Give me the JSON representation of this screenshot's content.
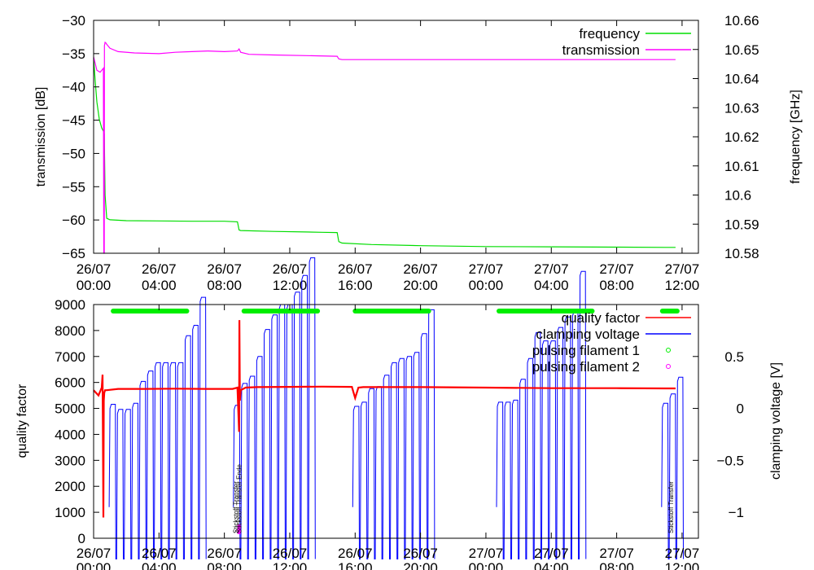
{
  "chart_data": [
    {
      "type": "line",
      "ylabel": "transmission [dB]",
      "y2label": "frequency [GHz]",
      "xlim": [
        0,
        37
      ],
      "ylim": [
        -65,
        -30
      ],
      "y2lim": [
        10.58,
        10.66
      ],
      "grid": false,
      "legend_position": "top-right",
      "x_ticks": [
        {
          "x": 0,
          "date": "26/07",
          "time": "00:00"
        },
        {
          "x": 4,
          "date": "26/07",
          "time": "04:00"
        },
        {
          "x": 8,
          "date": "26/07",
          "time": "08:00"
        },
        {
          "x": 12,
          "date": "26/07",
          "time": "12:00"
        },
        {
          "x": 16,
          "date": "26/07",
          "time": "16:00"
        },
        {
          "x": 20,
          "date": "26/07",
          "time": "20:00"
        },
        {
          "x": 24,
          "date": "27/07",
          "time": "00:00"
        },
        {
          "x": 28,
          "date": "27/07",
          "time": "04:00"
        },
        {
          "x": 32,
          "date": "27/07",
          "time": "08:00"
        },
        {
          "x": 36,
          "date": "27/07",
          "time": "12:00"
        }
      ],
      "y_ticks": [
        -30,
        -35,
        -40,
        -45,
        -50,
        -55,
        -60,
        -65
      ],
      "y2_ticks": [
        "10.66",
        "10.65",
        "10.64",
        "10.63",
        "10.62",
        "10.61",
        "10.6",
        "10.59",
        "10.58"
      ],
      "series": [
        {
          "name": "frequency",
          "axis": "y2",
          "color": "#00dd00",
          "x": [
            0,
            0.1,
            0.2,
            0.35,
            0.5,
            0.6,
            0.65,
            0.7,
            0.8,
            1.0,
            2.0,
            4.0,
            6.0,
            8.0,
            8.8,
            8.9,
            9.0,
            11.0,
            13.0,
            14.0,
            14.9,
            15.0,
            15.2,
            17.0,
            20.0,
            24.0,
            28.0,
            32.0,
            35.0,
            35.6
          ],
          "y": [
            10.647,
            10.639,
            10.632,
            10.626,
            10.623,
            10.622,
            10.621,
            10.6,
            10.592,
            10.5915,
            10.5912,
            10.5911,
            10.591,
            10.591,
            10.5908,
            10.588,
            10.5878,
            10.5875,
            10.5873,
            10.5872,
            10.5871,
            10.584,
            10.5835,
            10.583,
            10.5826,
            10.5823,
            10.5822,
            10.5821,
            10.582,
            10.582
          ]
        },
        {
          "name": "transmission",
          "axis": "y",
          "color": "#ff00ff",
          "x": [
            0,
            0.2,
            0.4,
            0.6,
            0.62,
            0.65,
            0.66,
            0.7,
            0.75,
            0.8,
            1.0,
            1.5,
            2.5,
            4.0,
            5.0,
            6.0,
            7.0,
            8.0,
            8.8,
            8.9,
            9.0,
            9.5,
            11.0,
            13.0,
            14.9,
            15.0,
            15.2,
            17.0,
            20.0,
            24.0,
            28.0,
            32.0,
            35.0,
            35.6
          ],
          "y": [
            -35.5,
            -37.5,
            -37.8,
            -37.2,
            -65,
            -65,
            -33.8,
            -33.3,
            -33.4,
            -33.6,
            -34.2,
            -34.7,
            -34.9,
            -35.0,
            -34.8,
            -34.7,
            -34.6,
            -34.7,
            -34.6,
            -34.3,
            -34.8,
            -35.1,
            -35.2,
            -35.3,
            -35.4,
            -35.8,
            -35.9,
            -35.9,
            -35.9,
            -35.9,
            -35.9,
            -35.9,
            -35.9,
            -35.9
          ]
        }
      ]
    },
    {
      "type": "line",
      "ylabel": "quality factor",
      "y2label": "clamping voltage [V]",
      "xlim": [
        0,
        37
      ],
      "ylim": [
        0,
        9000
      ],
      "y2lim": [
        -1.25,
        1.0
      ],
      "grid": false,
      "legend_position": "top-right",
      "x_ticks": [
        {
          "x": 0,
          "date": "26/07",
          "time": "00:00"
        },
        {
          "x": 4,
          "date": "26/07",
          "time": "04:00"
        },
        {
          "x": 8,
          "date": "26/07",
          "time": "08:00"
        },
        {
          "x": 12,
          "date": "26/07",
          "time": "12:00"
        },
        {
          "x": 16,
          "date": "26/07",
          "time": "16:00"
        },
        {
          "x": 20,
          "date": "26/07",
          "time": "20:00"
        },
        {
          "x": 24,
          "date": "27/07",
          "time": "00:00"
        },
        {
          "x": 28,
          "date": "27/07",
          "time": "04:00"
        },
        {
          "x": 32,
          "date": "27/07",
          "time": "08:00"
        },
        {
          "x": 36,
          "date": "27/07",
          "time": "12:00"
        }
      ],
      "y_ticks": [
        0,
        1000,
        2000,
        3000,
        4000,
        5000,
        6000,
        7000,
        8000,
        9000
      ],
      "y2_ticks": [
        0.5,
        0,
        -0.5,
        -1
      ],
      "y2_tick_labels": [
        "0.5",
        "0",
        "−0.5",
        "−1"
      ],
      "quality_factor": {
        "name": "quality factor",
        "color": "#ff0000",
        "x": [
          0,
          0.3,
          0.5,
          0.55,
          0.6,
          0.62,
          0.65,
          0.7,
          0.8,
          1.5,
          3.0,
          5.0,
          7.0,
          8.5,
          8.8,
          8.9,
          8.92,
          8.95,
          9.0,
          9.3,
          10.0,
          12.0,
          14.0,
          15.8,
          16.0,
          16.2,
          16.5,
          18.0,
          20.0,
          24.0,
          28.0,
          32.0,
          35.0,
          35.6
        ],
        "y": [
          5700,
          5500,
          5800,
          6300,
          800,
          5300,
          5600,
          5700,
          5700,
          5750,
          5750,
          5760,
          5750,
          5750,
          5800,
          4100,
          8400,
          5300,
          5700,
          5800,
          5820,
          5830,
          5840,
          5830,
          5400,
          5800,
          5820,
          5820,
          5820,
          5800,
          5780,
          5780,
          5770,
          5770
        ]
      },
      "clamping_voltage": {
        "name": "clamping voltage",
        "color": "#0000ff",
        "x_start": [
          1.0,
          8.6,
          15.9,
          24.7,
          34.8
        ],
        "steps": [
          [
            0.04,
            -0.01,
            -0.01,
            0.05,
            0.26,
            0.36,
            0.44,
            0.44,
            0.44,
            0.44,
            0.7,
            0.8,
            1.07
          ],
          [
            0.03,
            0.24,
            0.31,
            0.5,
            0.76,
            0.9,
            1.0,
            1.0,
            1.12,
            1.28,
            1.45
          ],
          [
            0.02,
            0.06,
            0.19,
            0.21,
            0.32,
            0.44,
            0.48,
            0.5,
            0.54,
            0.72,
            0.95
          ],
          [
            0.06,
            0.06,
            0.08,
            0.28,
            0.48,
            0.73,
            0.65,
            0.65,
            0.78,
            0.88,
            0.93,
            1.32
          ],
          [
            0.05,
            0.14,
            0.3
          ]
        ],
        "pulse_spacing": 0.46,
        "pulse_width": 0.33
      },
      "filament_1": {
        "name": "pulsing filament 1",
        "color": "#00ee00",
        "y": 8750,
        "segments": [
          [
            1.2,
            5.7
          ],
          [
            9.2,
            13.7
          ],
          [
            16.0,
            20.5
          ],
          [
            24.8,
            30.5
          ],
          [
            34.8,
            35.7
          ]
        ]
      },
      "filament_2": {
        "name": "pulsing filament 2",
        "color": "#ff00ff",
        "points": [
          {
            "x": 8.9,
            "y": 350
          }
        ]
      },
      "annotations": [
        {
          "x": 8.7,
          "text": "Stickstoff Transfer"
        },
        {
          "x": 8.9,
          "text": "Stickstoff Transfer Ende"
        },
        {
          "x": 35.3,
          "text": "Stickstoff Transfer"
        }
      ]
    }
  ]
}
